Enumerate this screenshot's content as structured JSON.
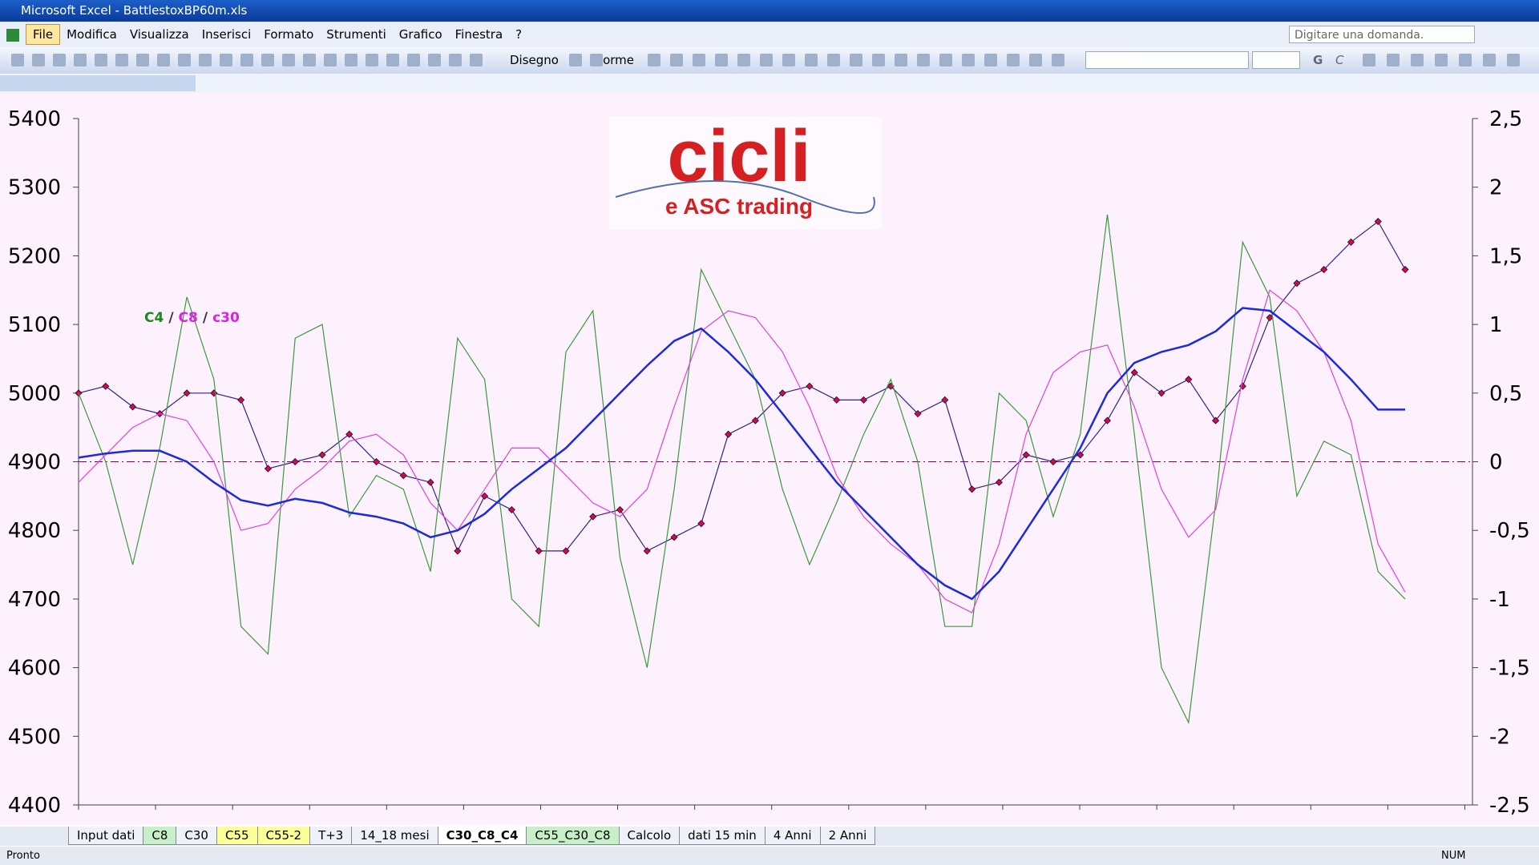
{
  "window": {
    "title": "Microsoft Excel - BattlestoxBP60m.xls"
  },
  "menu": [
    "File",
    "Modifica",
    "Visualizza",
    "Inserisci",
    "Formato",
    "Strumenti",
    "Grafico",
    "Finestra",
    "?"
  ],
  "help_box": "Digitare una domanda.",
  "toolbar": {
    "draw": "Disegno",
    "shapes": "Forme",
    "bold": "G",
    "italic": "C"
  },
  "chart_data": {
    "type": "line",
    "logo": {
      "title": "cicli",
      "subtitle": "e ASC trading"
    },
    "legend_separator": "/",
    "ylim": [
      4400,
      5400
    ],
    "yticks": [
      4400,
      4500,
      4600,
      4700,
      4800,
      4900,
      5000,
      5100,
      5200,
      5300,
      5400
    ],
    "y2lim": [
      -2.5,
      2.5
    ],
    "y2ticks": [
      {
        "value": -2.5,
        "label": "-2,5"
      },
      -2,
      {
        "value": -1.5,
        "label": "-1,5"
      },
      -1,
      {
        "value": -0.5,
        "label": "-0,5"
      },
      0,
      {
        "value": 0.5,
        "label": "0,5"
      },
      1,
      {
        "value": 1.5,
        "label": "1,5"
      },
      2,
      {
        "value": 2.5,
        "label": "2,5"
      }
    ],
    "reference_line": {
      "axis": "y2",
      "value": 0,
      "color": "#800060"
    },
    "series": [
      {
        "color": "#c8104a",
        "line_color": "#30208a",
        "marker": "diamond",
        "values": [
          5000,
          5010,
          4980,
          4970,
          5000,
          5000,
          4990,
          4890,
          4900,
          4910,
          4940,
          4900,
          4880,
          4870,
          4770,
          4850,
          4830,
          4770,
          4770,
          4820,
          4830,
          4770,
          4790,
          4810,
          4940,
          4960,
          5000,
          5010,
          4990,
          4990,
          5010,
          4970,
          4990,
          4860,
          4870,
          4910,
          4900,
          4910,
          4960,
          5030,
          5000,
          5020,
          4960,
          5010,
          5110,
          5160,
          5180,
          5220,
          5250,
          5180
        ]
      },
      {
        "name": "C4",
        "color": "#3a9a3a",
        "legend_color": "#1a8a1a",
        "axis": "y2",
        "values": [
          0.5,
          0.0,
          -0.75,
          0.1,
          1.2,
          0.6,
          -1.2,
          -1.4,
          0.9,
          1.0,
          -0.4,
          -0.1,
          -0.2,
          -0.8,
          0.9,
          0.6,
          -1.0,
          -1.2,
          0.8,
          1.1,
          -0.7,
          -1.5,
          -0.2,
          1.4,
          1.0,
          0.6,
          -0.2,
          -0.75,
          -0.3,
          0.2,
          0.6,
          0.0,
          -1.2,
          -1.2,
          0.5,
          0.3,
          -0.4,
          0.2,
          1.8,
          0.2,
          -1.5,
          -1.9,
          -0.3,
          1.6,
          1.2,
          -0.25,
          0.15,
          0.05,
          -0.8,
          -1.0
        ]
      },
      {
        "name": "C8",
        "color": "#e040e0",
        "legend_color": "#e020e0",
        "axis": "y2",
        "values": [
          -0.15,
          0.05,
          0.25,
          0.35,
          0.3,
          0.0,
          -0.5,
          -0.45,
          -0.2,
          -0.05,
          0.15,
          0.2,
          0.05,
          -0.3,
          -0.5,
          -0.2,
          0.1,
          0.1,
          -0.1,
          -0.3,
          -0.4,
          -0.2,
          0.4,
          0.95,
          1.1,
          1.05,
          0.8,
          0.4,
          -0.1,
          -0.4,
          -0.6,
          -0.75,
          -1.0,
          -1.1,
          -0.6,
          0.2,
          0.65,
          0.8,
          0.85,
          0.4,
          -0.2,
          -0.55,
          -0.35,
          0.6,
          1.25,
          1.1,
          0.8,
          0.3,
          -0.6,
          -0.95
        ]
      },
      {
        "name": "c30",
        "color": "#1a2adc",
        "legend_color": "#e020e0",
        "axis": "y2",
        "values": [
          0.03,
          0.06,
          0.08,
          0.08,
          0.0,
          -0.15,
          -0.28,
          -0.32,
          -0.27,
          -0.3,
          -0.37,
          -0.4,
          -0.45,
          -0.55,
          -0.5,
          -0.38,
          -0.2,
          -0.05,
          0.1,
          0.3,
          0.5,
          0.7,
          0.88,
          0.97,
          0.8,
          0.6,
          0.35,
          0.1,
          -0.15,
          -0.35,
          -0.55,
          -0.75,
          -0.9,
          -1.0,
          -0.8,
          -0.5,
          -0.2,
          0.1,
          0.5,
          0.72,
          0.8,
          0.85,
          0.95,
          1.12,
          1.1,
          0.95,
          0.8,
          0.6,
          0.38,
          0.38
        ]
      }
    ]
  },
  "sheet_tabs": [
    {
      "label": "Input dati"
    },
    {
      "label": "C8",
      "color": "#c8f0c8"
    },
    {
      "label": "C30"
    },
    {
      "label": "C55",
      "color": "#ffff99"
    },
    {
      "label": "C55-2",
      "color": "#ffff99"
    },
    {
      "label": "T+3"
    },
    {
      "label": "14_18 mesi"
    },
    {
      "label": "C30_C8_C4",
      "active": true
    },
    {
      "label": "C55_C30_C8",
      "color": "#c8f0c8"
    },
    {
      "label": "Calcolo"
    },
    {
      "label": "dati 15 min"
    },
    {
      "label": "4 Anni"
    },
    {
      "label": "2 Anni"
    }
  ],
  "status": {
    "left": "Pronto",
    "num": "NUM"
  }
}
